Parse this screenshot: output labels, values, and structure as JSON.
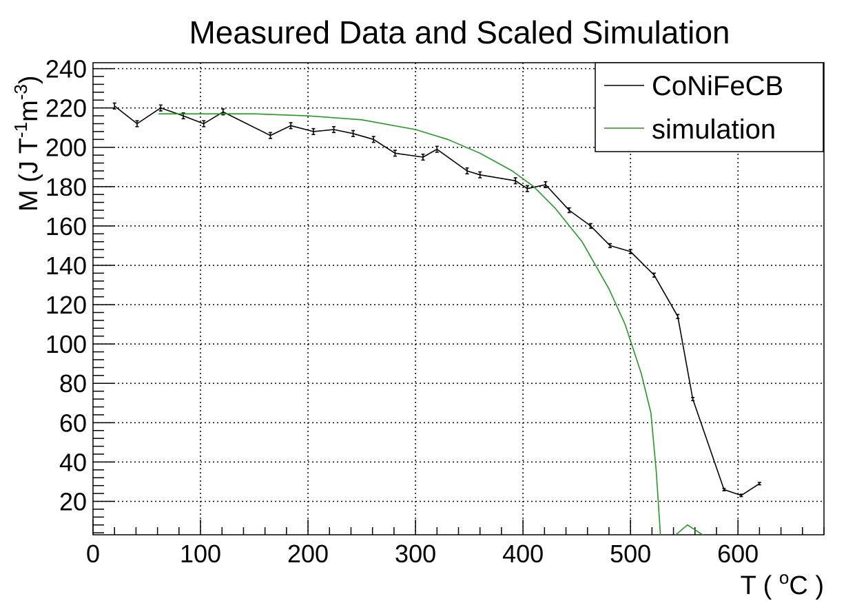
{
  "chart_data": {
    "type": "line",
    "title": "Measured Data and Scaled Simulation",
    "xlabel": "T ( °C )",
    "xlabel_parts": {
      "before": "T ( ",
      "sup": "o",
      "after": "C )"
    },
    "ylabel": "M (J T-1m-3)",
    "ylabel_parts": {
      "a": "M (J T",
      "sup1": "-1",
      "b": "m",
      "sup2": "-3",
      "c": ")"
    },
    "xlim": [
      0,
      680
    ],
    "ylim": [
      3,
      243
    ],
    "x_ticks": [
      0,
      100,
      200,
      300,
      400,
      500,
      600
    ],
    "x_tick_labels": [
      "0",
      "100",
      "200",
      "300",
      "400",
      "500",
      "600"
    ],
    "y_ticks": [
      20,
      40,
      60,
      80,
      100,
      120,
      140,
      160,
      180,
      200,
      220,
      240
    ],
    "y_tick_labels": [
      "20",
      "40",
      "60",
      "80",
      "100",
      "120",
      "140",
      "160",
      "180",
      "200",
      "220",
      "240"
    ],
    "grid": true,
    "legend_position": "top-right",
    "series": [
      {
        "name": "CoNiFeCB",
        "color": "#000000",
        "x": [
          20,
          41,
          63,
          84,
          103,
          121,
          165,
          184,
          205,
          224,
          242,
          261,
          281,
          307,
          320,
          348,
          360,
          393,
          404,
          421,
          443,
          463,
          481,
          500,
          522,
          544,
          558,
          587,
          603,
          620
        ],
        "y": [
          221,
          212,
          220,
          216,
          212,
          218,
          206,
          211,
          208,
          209,
          207,
          204,
          197,
          195,
          199,
          188,
          186,
          183,
          179,
          181,
          168,
          160,
          150,
          147,
          135,
          114,
          72,
          26,
          23,
          29
        ],
        "errors": [
          1.5,
          1.5,
          1.5,
          1.5,
          1.5,
          1.5,
          1.5,
          1.5,
          1.5,
          1.5,
          1.5,
          1.5,
          1.5,
          1.5,
          1.5,
          1.5,
          1.5,
          1.5,
          1.5,
          1.5,
          1.2,
          1.2,
          1.0,
          1.0,
          1.0,
          1.0,
          0.8,
          0.6,
          0.6,
          0.6
        ]
      },
      {
        "name": "simulation",
        "color": "#229922",
        "x": [
          61,
          100,
          150,
          200,
          250,
          300,
          330,
          360,
          390,
          410,
          430,
          455,
          480,
          495,
          510,
          519,
          524,
          528,
          540,
          553,
          570
        ],
        "y": [
          217,
          217,
          217,
          216,
          214,
          209,
          204,
          197,
          188,
          180,
          169,
          152,
          128,
          110,
          85,
          65,
          35,
          2,
          2,
          8,
          2
        ]
      }
    ]
  }
}
